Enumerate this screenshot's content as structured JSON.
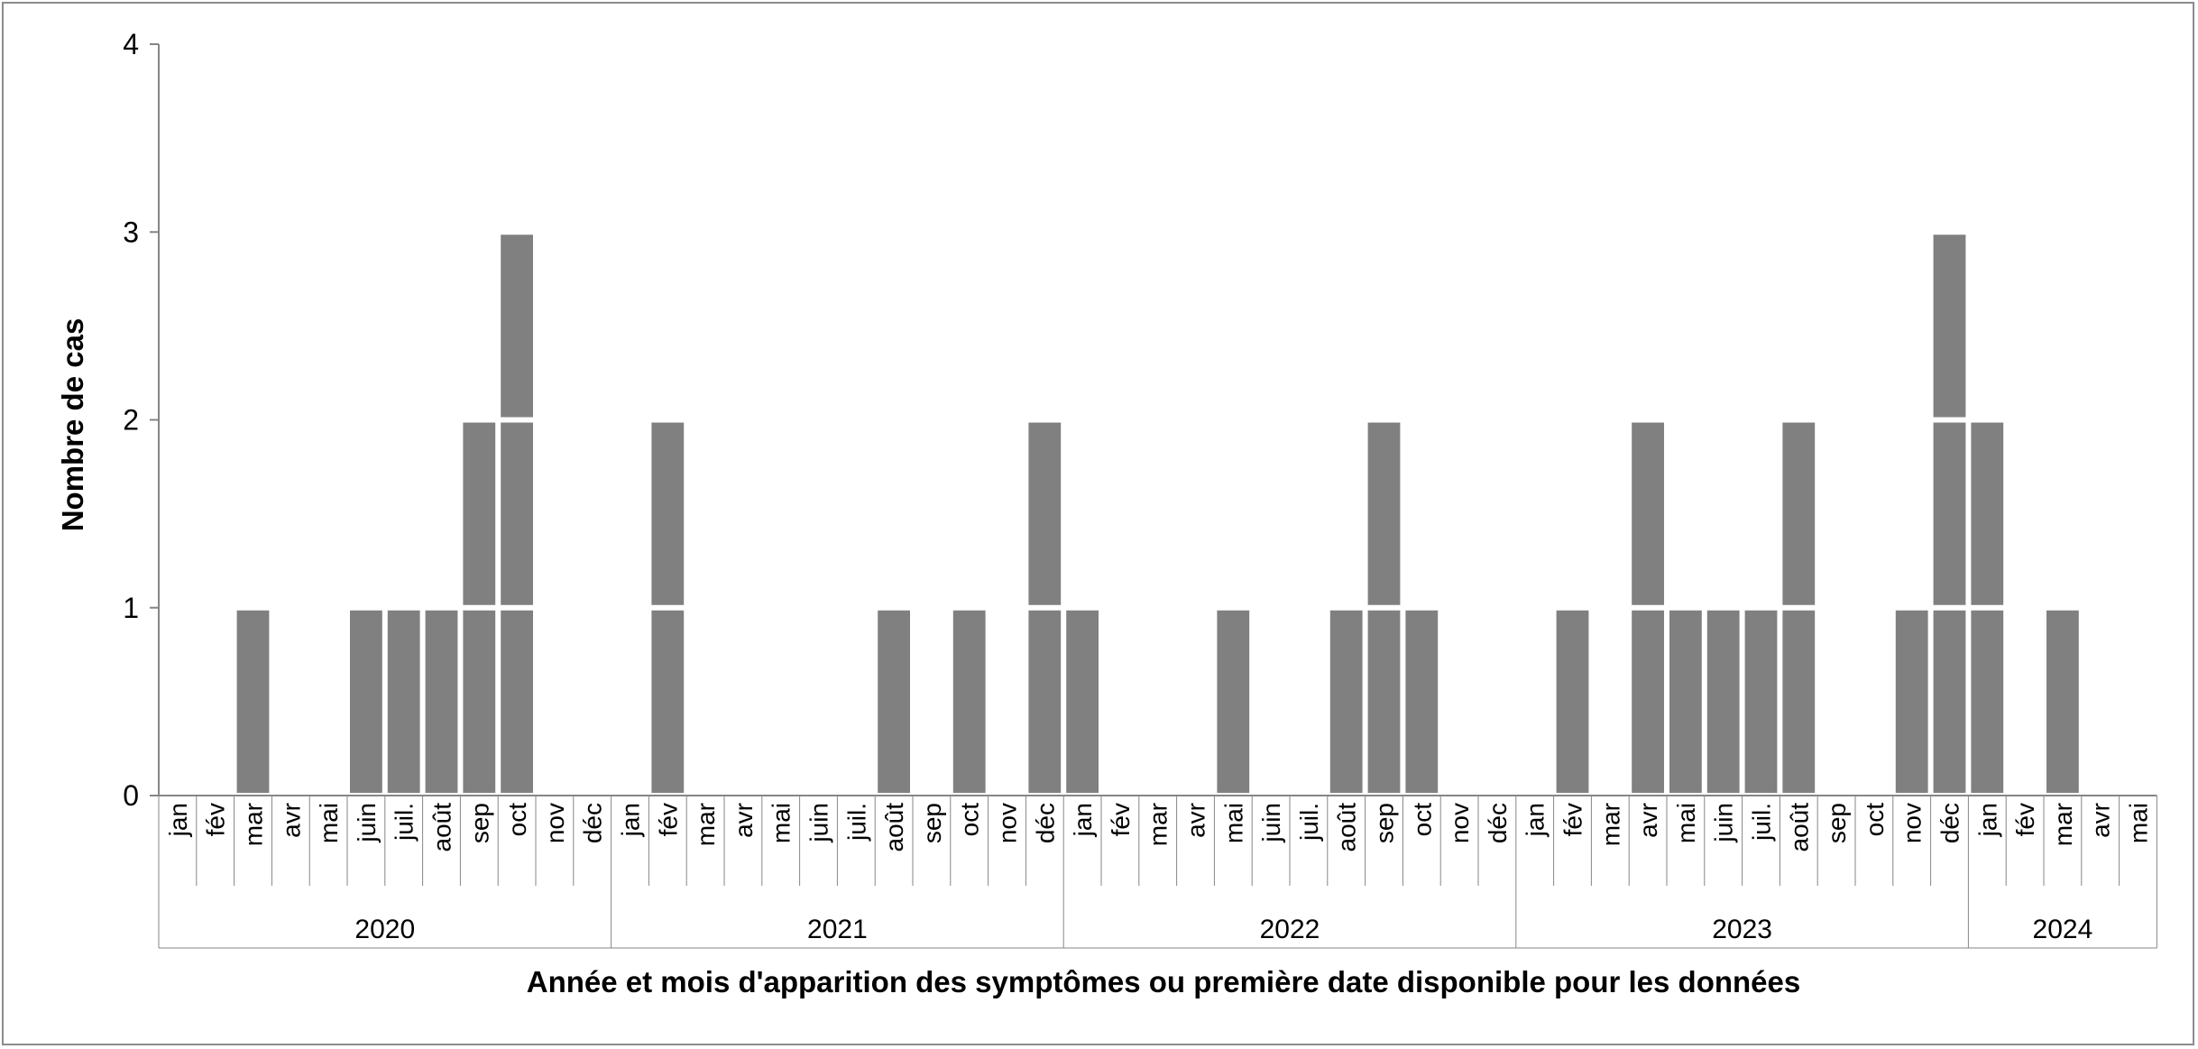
{
  "chart_data": {
    "type": "bar",
    "title": "",
    "xlabel": "Année et mois d'apparition des symptômes ou première date disponible pour les données",
    "ylabel": "Nombre de cas",
    "ylim": [
      0,
      4
    ],
    "yticks": [
      "0",
      "1",
      "2",
      "3",
      "4"
    ],
    "grid": false,
    "stacked_unit_blocks": true,
    "bar_color": "#808080",
    "separator_color": "#ffffff",
    "categories": [
      "jan",
      "fév",
      "mar",
      "avr",
      "mai",
      "juin",
      "juil.",
      "août",
      "sep",
      "oct",
      "nov",
      "déc",
      "jan",
      "fév",
      "mar",
      "avr",
      "mai",
      "juin",
      "juil.",
      "août",
      "sep",
      "oct",
      "nov",
      "déc",
      "jan",
      "fév",
      "mar",
      "avr",
      "mai",
      "juin",
      "juil.",
      "août",
      "sep",
      "oct",
      "nov",
      "déc",
      "jan",
      "fév",
      "mar",
      "avr",
      "mai",
      "juin",
      "juil.",
      "août",
      "sep",
      "oct",
      "nov",
      "déc",
      "jan",
      "fév",
      "mar",
      "avr",
      "mai"
    ],
    "values": [
      0,
      0,
      1,
      0,
      0,
      1,
      1,
      1,
      2,
      3,
      0,
      0,
      0,
      2,
      0,
      0,
      0,
      0,
      0,
      1,
      0,
      1,
      0,
      2,
      1,
      0,
      0,
      0,
      1,
      0,
      0,
      1,
      2,
      1,
      0,
      0,
      0,
      1,
      0,
      2,
      1,
      1,
      1,
      2,
      0,
      0,
      1,
      3,
      2,
      0,
      1,
      0,
      0
    ],
    "years": [
      {
        "label": "2020",
        "start": 0,
        "count": 12
      },
      {
        "label": "2021",
        "start": 12,
        "count": 12
      },
      {
        "label": "2022",
        "start": 24,
        "count": 12
      },
      {
        "label": "2023",
        "start": 36,
        "count": 12
      },
      {
        "label": "2024",
        "start": 48,
        "count": 5
      }
    ]
  }
}
